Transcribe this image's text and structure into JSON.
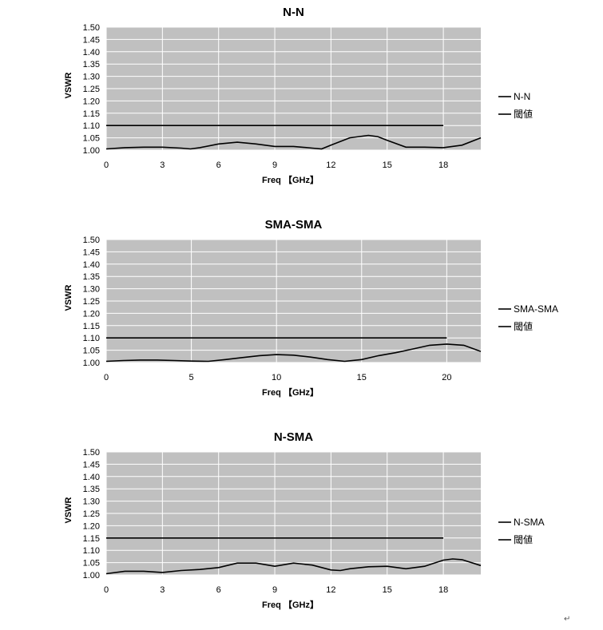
{
  "chart_data": [
    {
      "type": "line",
      "title": "N-N",
      "xlabel": "Freq 【GHz】",
      "ylabel": "VSWR",
      "xlim": [
        0,
        20
      ],
      "ylim": [
        1.0,
        1.5
      ],
      "xticks": [
        0,
        3,
        6,
        9,
        12,
        15,
        18
      ],
      "yticks": [
        "1.00",
        "1.05",
        "1.10",
        "1.15",
        "1.20",
        "1.25",
        "1.30",
        "1.35",
        "1.40",
        "1.45",
        "1.50"
      ],
      "grid": true,
      "legend_position": "right",
      "series": [
        {
          "name": "N-N",
          "color": "#000000",
          "x": [
            0,
            1,
            2,
            3,
            4,
            4.5,
            5,
            6,
            7,
            8,
            9,
            10,
            11,
            11.5,
            12,
            13,
            14,
            14.5,
            15,
            16,
            17,
            18,
            19,
            20
          ],
          "y": [
            1.005,
            1.01,
            1.012,
            1.012,
            1.008,
            1.005,
            1.01,
            1.025,
            1.032,
            1.025,
            1.015,
            1.015,
            1.008,
            1.005,
            1.02,
            1.05,
            1.06,
            1.055,
            1.04,
            1.012,
            1.012,
            1.01,
            1.02,
            1.05
          ]
        },
        {
          "name": "閾値",
          "color": "#000000",
          "x": [
            0,
            18
          ],
          "y": [
            1.1,
            1.1
          ]
        }
      ]
    },
    {
      "type": "line",
      "title": "SMA-SMA",
      "xlabel": "Freq 【GHz】",
      "ylabel": "VSWR",
      "xlim": [
        0,
        22
      ],
      "ylim": [
        1.0,
        1.5
      ],
      "xticks": [
        0,
        5,
        10,
        15,
        20
      ],
      "yticks": [
        "1.00",
        "1.05",
        "1.10",
        "1.15",
        "1.20",
        "1.25",
        "1.30",
        "1.35",
        "1.40",
        "1.45",
        "1.50"
      ],
      "grid": true,
      "legend_position": "right",
      "series": [
        {
          "name": "SMA-SMA",
          "color": "#000000",
          "x": [
            0,
            1,
            2,
            3,
            4,
            5,
            6,
            7,
            8,
            9,
            10,
            11,
            12,
            13,
            14,
            15,
            16,
            17,
            18,
            19,
            20,
            21,
            22
          ],
          "y": [
            1.005,
            1.008,
            1.01,
            1.01,
            1.008,
            1.006,
            1.005,
            1.012,
            1.02,
            1.028,
            1.032,
            1.03,
            1.022,
            1.012,
            1.005,
            1.012,
            1.028,
            1.04,
            1.055,
            1.07,
            1.075,
            1.07,
            1.045
          ]
        },
        {
          "name": "閾値",
          "color": "#000000",
          "x": [
            0,
            20
          ],
          "y": [
            1.1,
            1.1
          ]
        }
      ]
    },
    {
      "type": "line",
      "title": "N-SMA",
      "xlabel": "Freq 【GHz】",
      "ylabel": "VSWR",
      "xlim": [
        0,
        20
      ],
      "ylim": [
        1.0,
        1.5
      ],
      "xticks": [
        0,
        3,
        6,
        9,
        12,
        15,
        18
      ],
      "yticks": [
        "1.00",
        "1.05",
        "1.10",
        "1.15",
        "1.20",
        "1.25",
        "1.30",
        "1.35",
        "1.40",
        "1.45",
        "1.50"
      ],
      "grid": true,
      "legend_position": "right",
      "series": [
        {
          "name": "N-SMA",
          "color": "#000000",
          "x": [
            0,
            1,
            2,
            3,
            4,
            5,
            6,
            7,
            8,
            9,
            10,
            11,
            12,
            12.5,
            13,
            14,
            15,
            16,
            17,
            18,
            18.5,
            19,
            20
          ],
          "y": [
            1.005,
            1.015,
            1.015,
            1.01,
            1.018,
            1.022,
            1.03,
            1.048,
            1.048,
            1.035,
            1.048,
            1.04,
            1.02,
            1.018,
            1.025,
            1.033,
            1.035,
            1.025,
            1.035,
            1.06,
            1.065,
            1.062,
            1.038
          ]
        },
        {
          "name": "閾値",
          "color": "#000000",
          "x": [
            0,
            18
          ],
          "y": [
            1.15,
            1.15
          ]
        }
      ]
    }
  ]
}
